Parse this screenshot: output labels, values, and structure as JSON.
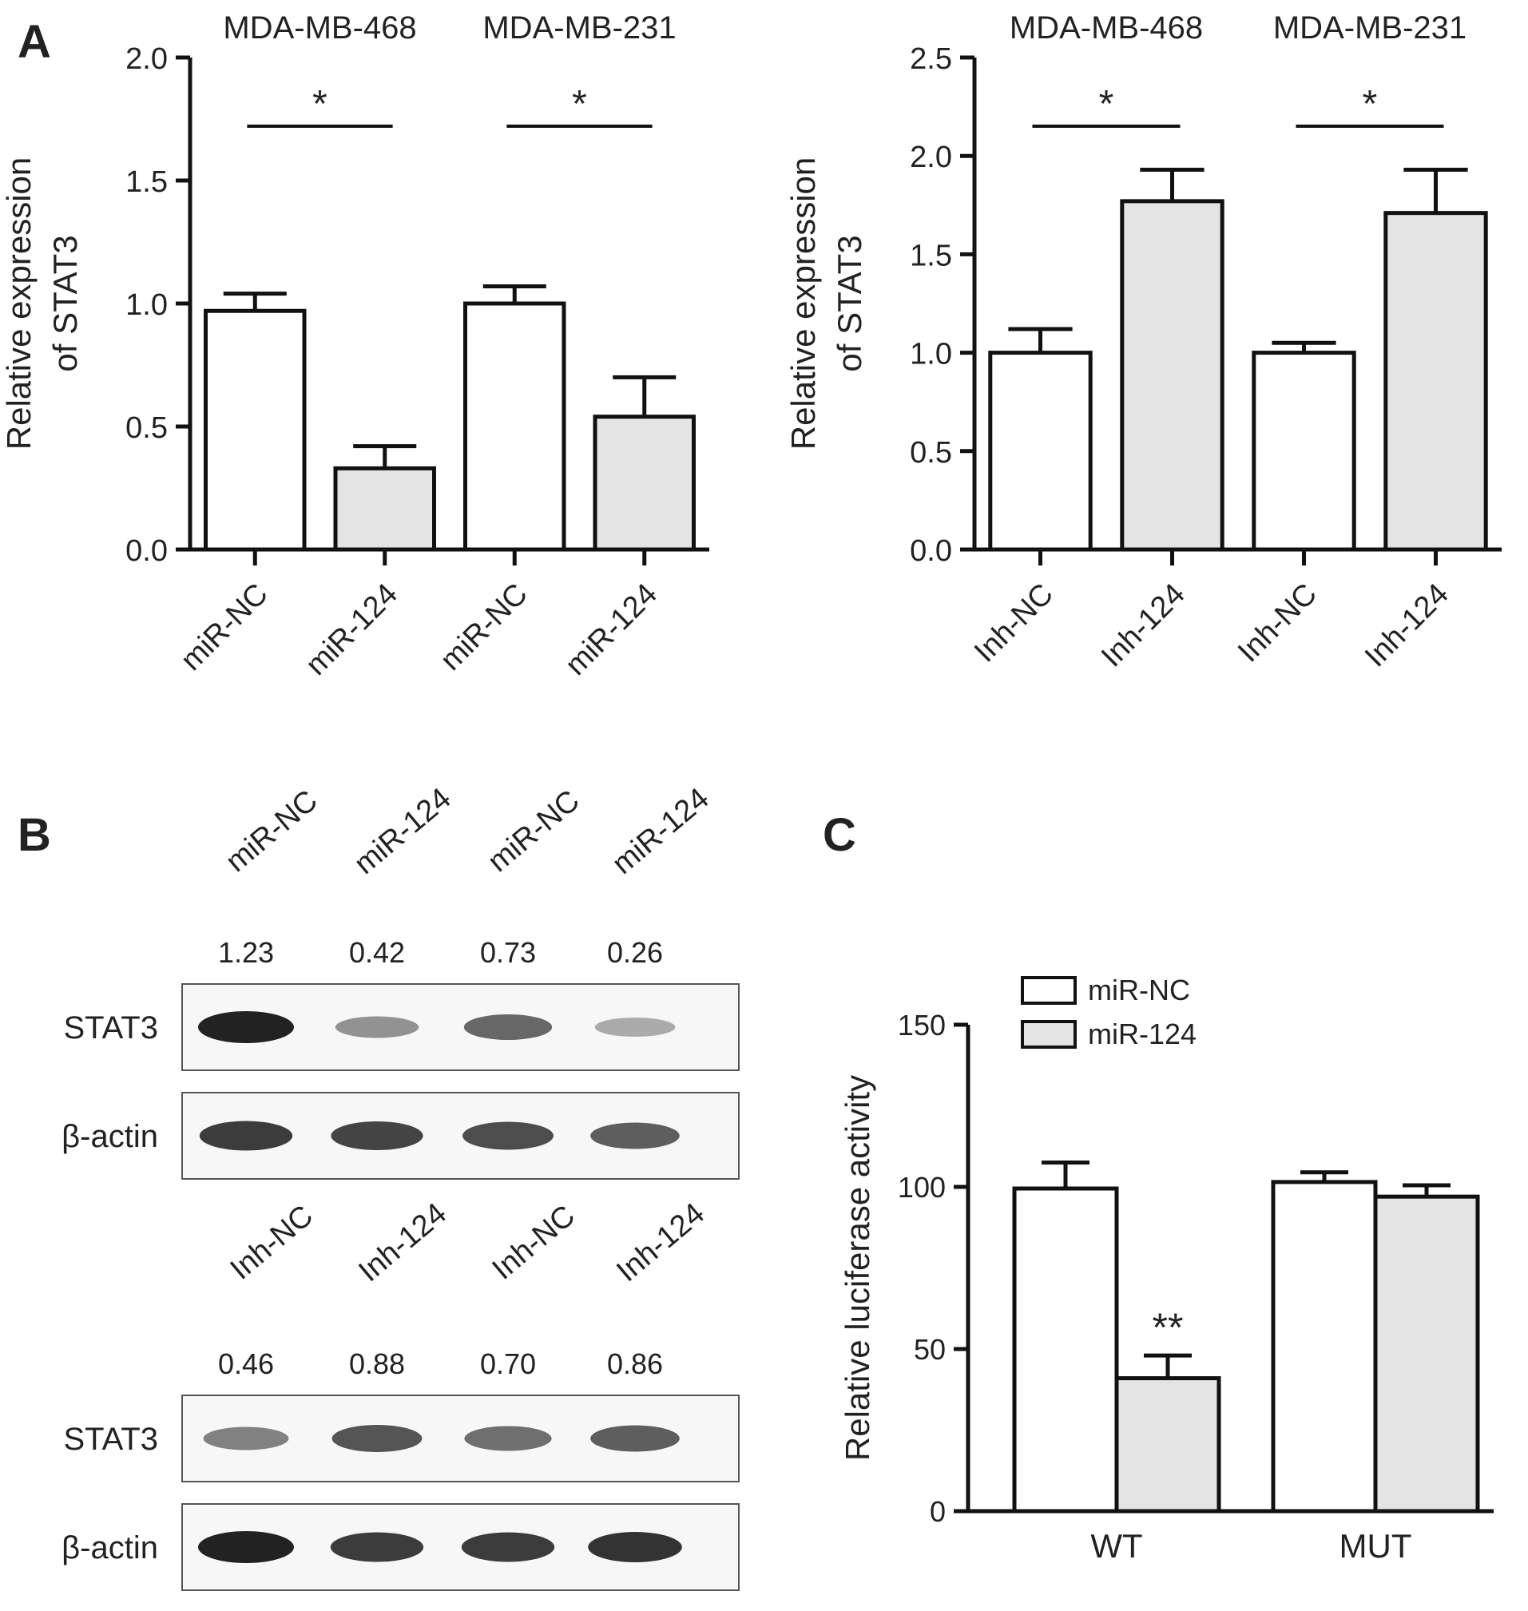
{
  "panel_labels": {
    "a": "A",
    "b": "B",
    "c": "C"
  },
  "colors": {
    "bar_control": "#ffffff",
    "bar_treated": "#e4e4e4",
    "stroke": "#111111",
    "text": "#222222"
  },
  "chart_data": [
    {
      "id": "A-left",
      "type": "bar",
      "ylabel": [
        "Relative expression",
        "of STAT3"
      ],
      "ylim": [
        0,
        2.0
      ],
      "yticks": [
        0.0,
        0.5,
        1.0,
        1.5,
        2.0
      ],
      "ytick_labels": [
        "0.0",
        "0.5",
        "1.0",
        "1.5",
        "2.0"
      ],
      "group_titles": [
        "MDA-MB-468",
        "MDA-MB-231"
      ],
      "categories": [
        "miR-NC",
        "miR-124",
        "miR-NC",
        "miR-124"
      ],
      "values": [
        0.97,
        0.33,
        1.0,
        0.54
      ],
      "errors": [
        0.07,
        0.09,
        0.07,
        0.16
      ],
      "fills": [
        "control",
        "treated",
        "control",
        "treated"
      ],
      "significance": [
        {
          "from": 0,
          "to": 1,
          "label": "*"
        },
        {
          "from": 2,
          "to": 3,
          "label": "*"
        }
      ]
    },
    {
      "id": "A-right",
      "type": "bar",
      "ylabel": [
        "Relative expression",
        "of STAT3"
      ],
      "ylim": [
        0,
        2.5
      ],
      "yticks": [
        0.0,
        0.5,
        1.0,
        1.5,
        2.0,
        2.5
      ],
      "ytick_labels": [
        "0.0",
        "0.5",
        "1.0",
        "1.5",
        "2.0",
        "2.5"
      ],
      "group_titles": [
        "MDA-MB-468",
        "MDA-MB-231"
      ],
      "categories": [
        "Inh-NC",
        "Inh-124",
        "Inh-NC",
        "Inh-124"
      ],
      "values": [
        1.0,
        1.77,
        1.0,
        1.71
      ],
      "errors": [
        0.12,
        0.16,
        0.05,
        0.22
      ],
      "fills": [
        "control",
        "treated",
        "control",
        "treated"
      ],
      "significance": [
        {
          "from": 0,
          "to": 1,
          "label": "*"
        },
        {
          "from": 2,
          "to": 3,
          "label": "*"
        }
      ]
    },
    {
      "id": "C",
      "type": "bar",
      "ylabel": [
        "Relative luciferase activity"
      ],
      "ylim": [
        0,
        150
      ],
      "yticks": [
        0,
        50,
        100,
        150
      ],
      "ytick_labels": [
        "0",
        "50",
        "100",
        "150"
      ],
      "categories": [
        "WT",
        "MUT"
      ],
      "legend": [
        "miR-NC",
        "miR-124"
      ],
      "legend_position": "top-left",
      "series": [
        {
          "name": "miR-NC",
          "values": [
            99.5,
            101.5
          ],
          "errors": [
            8,
            3
          ]
        },
        {
          "name": "miR-124",
          "values": [
            41,
            97
          ],
          "errors": [
            7,
            3.5
          ]
        }
      ],
      "significance": [
        {
          "category": 0,
          "series": 1,
          "label": "**"
        }
      ]
    }
  ],
  "western_blots": [
    {
      "id": "B-top",
      "lanes": [
        "miR-NC",
        "miR-124",
        "miR-NC",
        "miR-124"
      ],
      "quantification": [
        "1.23",
        "0.42",
        "0.73",
        "0.26"
      ],
      "rows": [
        {
          "label": "STAT3",
          "intensity": [
            1.0,
            0.35,
            0.6,
            0.2
          ]
        },
        {
          "label": "β-actin",
          "intensity": [
            0.85,
            0.8,
            0.75,
            0.65
          ]
        }
      ]
    },
    {
      "id": "B-bottom",
      "lanes": [
        "Inh-NC",
        "Inh-124",
        "Inh-NC",
        "Inh-124"
      ],
      "quantification": [
        "0.46",
        "0.88",
        "0.70",
        "0.86"
      ],
      "rows": [
        {
          "label": "STAT3",
          "intensity": [
            0.45,
            0.7,
            0.55,
            0.65
          ]
        },
        {
          "label": "β-actin",
          "intensity": [
            1.0,
            0.85,
            0.85,
            0.9
          ]
        }
      ]
    }
  ]
}
